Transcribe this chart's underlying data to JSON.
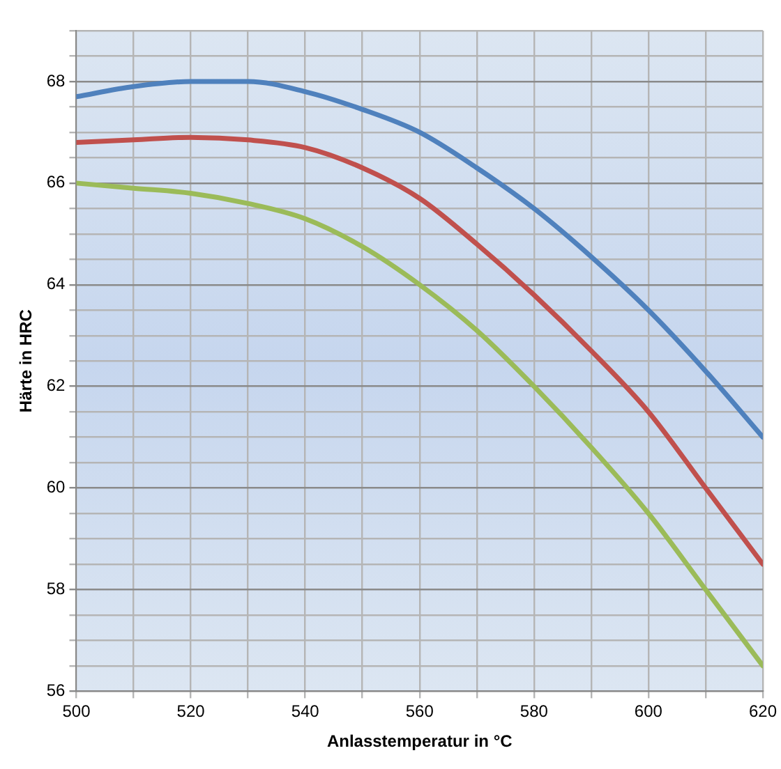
{
  "chart_data": {
    "type": "line",
    "xlabel": "Anlasstemperatur in °C",
    "ylabel": "Härte in HRC",
    "x": [
      500,
      510,
      520,
      530,
      540,
      550,
      560,
      570,
      580,
      590,
      600,
      610,
      620
    ],
    "series": [
      {
        "color": "#4f81bd",
        "values": [
          67.7,
          67.9,
          68.0,
          68.0,
          67.8,
          67.45,
          67.0,
          66.3,
          65.5,
          64.55,
          63.5,
          62.3,
          61.0
        ]
      },
      {
        "color": "#c0504d",
        "values": [
          66.8,
          66.85,
          66.9,
          66.85,
          66.7,
          66.3,
          65.7,
          64.8,
          63.8,
          62.7,
          61.5,
          60.0,
          58.5
        ]
      },
      {
        "color": "#9bbb59",
        "values": [
          66.0,
          65.9,
          65.8,
          65.6,
          65.3,
          64.75,
          64.0,
          63.1,
          62.0,
          60.8,
          59.5,
          58.0,
          56.5
        ]
      }
    ],
    "xlim": [
      500,
      620
    ],
    "xticks": [
      500,
      {
        "value": 510,
        "label": null
      },
      520,
      {
        "value": 530,
        "label": null
      },
      540,
      {
        "value": 550,
        "label": null
      },
      560,
      {
        "value": 570,
        "label": null
      },
      580,
      {
        "value": 590,
        "label": null
      },
      600,
      {
        "value": 610,
        "label": null
      },
      620
    ],
    "ylim": [
      56,
      69
    ],
    "yticks": [
      56,
      {
        "value": 56.5,
        "label": null
      },
      {
        "value": 57,
        "label": null
      },
      {
        "value": 57.5,
        "label": null
      },
      58,
      {
        "value": 58.5,
        "label": null
      },
      {
        "value": 59,
        "label": null
      },
      {
        "value": 59.5,
        "label": null
      },
      60,
      {
        "value": 60.5,
        "label": null
      },
      {
        "value": 61,
        "label": null
      },
      {
        "value": 61.5,
        "label": null
      },
      62,
      {
        "value": 62.5,
        "label": null
      },
      {
        "value": 63,
        "label": null
      },
      {
        "value": 63.5,
        "label": null
      },
      64,
      {
        "value": 64.5,
        "label": null
      },
      {
        "value": 65,
        "label": null
      },
      {
        "value": 65.5,
        "label": null
      },
      66,
      {
        "value": 66.5,
        "label": null
      },
      {
        "value": 67,
        "label": null
      },
      {
        "value": 67.5,
        "label": null
      },
      68,
      {
        "value": 68.5,
        "label": null
      },
      {
        "value": 69,
        "label": null
      }
    ],
    "grid": true,
    "legend": false,
    "marker": "none",
    "line_style": "solid"
  }
}
